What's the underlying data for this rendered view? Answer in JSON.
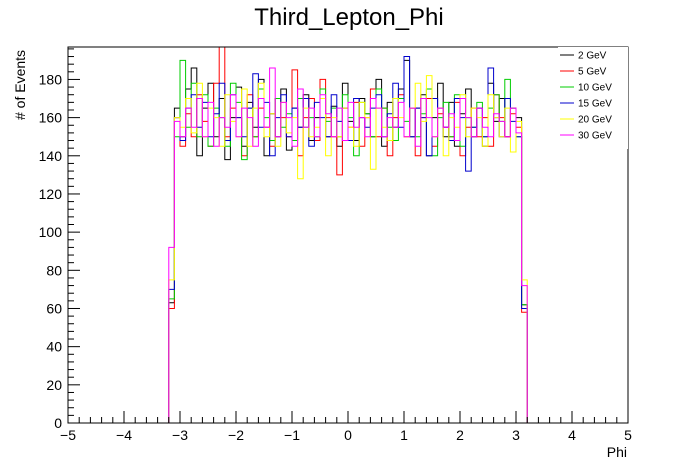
{
  "chart_data": {
    "type": "line",
    "title": "Third_Lepton_Phi",
    "xlabel": "Phi",
    "ylabel": "# of Events",
    "xlim": [
      -5,
      5
    ],
    "ylim": [
      0,
      197
    ],
    "x_ticks": [
      -5,
      -4,
      -3,
      -2,
      -1,
      0,
      1,
      2,
      3,
      4,
      5
    ],
    "y_ticks": [
      0,
      20,
      40,
      60,
      80,
      100,
      120,
      140,
      160,
      180
    ],
    "legend_position": "top-right",
    "bin_edges_x": [
      -5,
      -3.2,
      -3.1,
      -3.0,
      -2.9,
      -2.8,
      -2.7,
      -2.6,
      -2.5,
      -2.4,
      -2.3,
      -2.2,
      -2.1,
      -2.0,
      -1.9,
      -1.8,
      -1.7,
      -1.6,
      -1.5,
      -1.4,
      -1.3,
      -1.2,
      -1.1,
      -1.0,
      -0.9,
      -0.8,
      -0.7,
      -0.6,
      -0.5,
      -0.4,
      -0.3,
      -0.2,
      -0.1,
      0.0,
      0.1,
      0.2,
      0.3,
      0.4,
      0.5,
      0.6,
      0.7,
      0.8,
      0.9,
      1.0,
      1.1,
      1.2,
      1.3,
      1.4,
      1.5,
      1.6,
      1.7,
      1.8,
      1.9,
      2.0,
      2.1,
      2.2,
      2.3,
      2.4,
      2.5,
      2.6,
      2.7,
      2.8,
      2.9,
      3.0,
      3.1,
      3.2,
      5
    ],
    "series": [
      {
        "name": "2 GeV",
        "color": "#000000",
        "values": [
          0,
          63,
          165,
          150,
          175,
          186,
          140,
          165,
          178,
          150,
          170,
          138,
          160,
          176,
          145,
          168,
          155,
          180,
          140,
          162,
          150,
          175,
          143,
          165,
          155,
          172,
          148,
          160,
          170,
          150,
          166,
          145,
          178,
          158,
          148,
          170,
          162,
          150,
          180,
          145,
          168,
          155,
          175,
          190,
          150,
          165,
          172,
          140,
          160,
          178,
          150,
          168,
          145,
          162,
          175,
          150,
          165,
          145,
          178,
          158,
          170,
          150,
          165,
          160,
          62,
          0
        ]
      },
      {
        "name": "5 GeV",
        "color": "#ff0000",
        "values": [
          0,
          60,
          160,
          145,
          162,
          150,
          172,
          158,
          145,
          178,
          198,
          150,
          165,
          160,
          140,
          172,
          150,
          165,
          155,
          145,
          170,
          160,
          150,
          185,
          140,
          160,
          170,
          148,
          180,
          160,
          150,
          130,
          165,
          155,
          168,
          145,
          160,
          175,
          150,
          165,
          140,
          160,
          172,
          150,
          165,
          140,
          160,
          170,
          145,
          162,
          155,
          150,
          168,
          140,
          155,
          165,
          150,
          160,
          145,
          172,
          160,
          150,
          162,
          155,
          58,
          0
        ]
      },
      {
        "name": "10 GeV",
        "color": "#00cc00",
        "values": [
          0,
          65,
          150,
          190,
          155,
          178,
          150,
          172,
          145,
          165,
          160,
          145,
          178,
          168,
          138,
          165,
          150,
          175,
          160,
          148,
          170,
          155,
          162,
          148,
          170,
          155,
          160,
          150,
          175,
          158,
          165,
          150,
          172,
          160,
          140,
          168,
          162,
          150,
          175,
          165,
          155,
          148,
          170,
          158,
          165,
          150,
          162,
          175,
          140,
          160,
          168,
          150,
          172,
          145,
          160,
          155,
          168,
          150,
          165,
          172,
          158,
          180,
          165,
          150,
          62,
          0
        ]
      },
      {
        "name": "15 GeV",
        "color": "#0000cc",
        "values": [
          0,
          70,
          160,
          148,
          165,
          172,
          155,
          168,
          150,
          162,
          178,
          148,
          172,
          160,
          150,
          165,
          183,
          155,
          168,
          140,
          160,
          172,
          150,
          165,
          155,
          170,
          145,
          168,
          160,
          150,
          172,
          158,
          165,
          148,
          170,
          160,
          155,
          165,
          172,
          150,
          162,
          178,
          155,
          192,
          150,
          165,
          160,
          140,
          170,
          165,
          155,
          148,
          170,
          160,
          132,
          155,
          165,
          150,
          186,
          160,
          150,
          170,
          158,
          150,
          60,
          0
        ]
      },
      {
        "name": "20 GeV",
        "color": "#ffff00",
        "values": [
          0,
          75,
          160,
          155,
          170,
          152,
          178,
          150,
          165,
          160,
          145,
          172,
          158,
          150,
          175,
          145,
          165,
          178,
          150,
          162,
          145,
          168,
          152,
          160,
          128,
          165,
          150,
          155,
          170,
          140,
          160,
          150,
          165,
          155,
          145,
          168,
          160,
          133,
          165,
          155,
          148,
          170,
          160,
          150,
          165,
          178,
          158,
          182,
          150,
          165,
          140,
          160,
          155,
          172,
          150,
          165,
          160,
          145,
          172,
          160,
          150,
          165,
          142,
          158,
          75,
          0
        ]
      },
      {
        "name": "30 GeV",
        "color": "#ff00ff",
        "values": [
          0,
          92,
          158,
          150,
          165,
          155,
          170,
          150,
          168,
          145,
          160,
          155,
          172,
          150,
          165,
          160,
          145,
          170,
          155,
          186,
          150,
          168,
          160,
          145,
          175,
          155,
          165,
          150,
          172,
          162,
          150,
          165,
          148,
          168,
          155,
          160,
          150,
          170,
          165,
          150,
          160,
          155,
          168,
          150,
          165,
          145,
          170,
          160,
          150,
          165,
          155,
          162,
          148,
          170,
          160,
          150,
          165,
          155,
          150,
          162,
          158,
          150,
          165,
          152,
          72,
          0
        ]
      }
    ]
  }
}
